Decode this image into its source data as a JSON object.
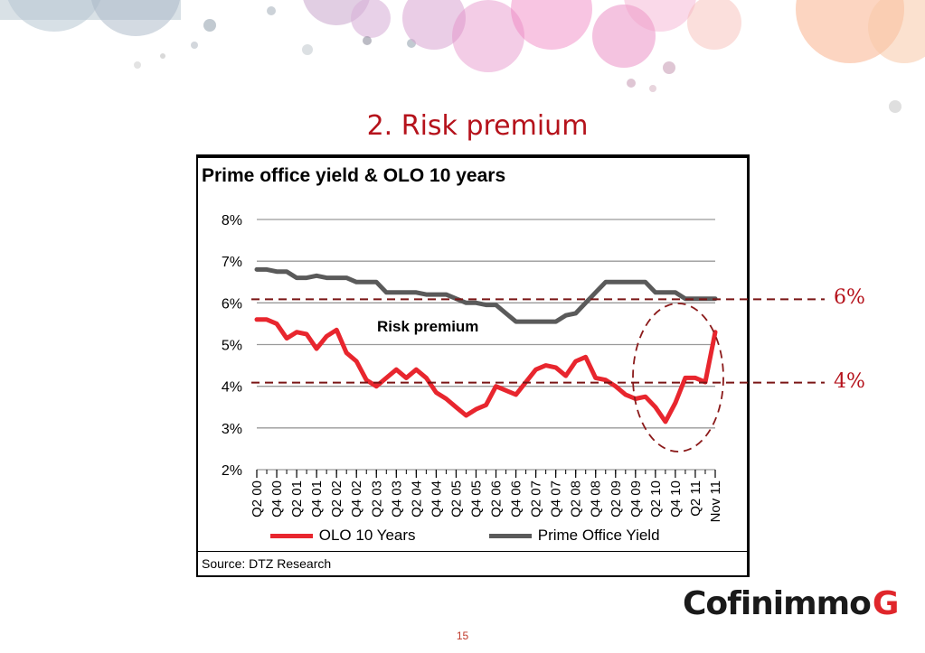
{
  "slide": {
    "title": "2. Risk premium",
    "page_number": "15",
    "logo_text": "Cofinimmo",
    "logo_mark": "G"
  },
  "annotations": {
    "risk_premium_label": "Risk premium",
    "level_high_label": "6%",
    "level_high_value": 6,
    "level_low_label": "4%",
    "level_low_value": 4
  },
  "chart_data": {
    "type": "line",
    "title": "Prime office yield & OLO 10 years",
    "source": "Source: DTZ Research",
    "xlabel": "",
    "ylabel": "",
    "ylim": [
      2,
      8
    ],
    "y_ticks": [
      2,
      3,
      4,
      5,
      6,
      7,
      8
    ],
    "y_tick_labels": [
      "2%",
      "3%",
      "4%",
      "5%",
      "6%",
      "7%",
      "8%"
    ],
    "grid": true,
    "legend_position": "bottom",
    "x_tick_labels": [
      "Q2 00",
      "Q4 00",
      "Q2 01",
      "Q4 01",
      "Q2 02",
      "Q4 02",
      "Q2 03",
      "Q4 03",
      "Q2 04",
      "Q4 04",
      "Q2 05",
      "Q4 05",
      "Q2 06",
      "Q4 06",
      "Q2 07",
      "Q4 07",
      "Q2 08",
      "Q4 08",
      "Q2 09",
      "Q4 09",
      "Q2 10",
      "Q4 10",
      "Q2 11",
      "Nov 11"
    ],
    "series": [
      {
        "name": "OLO 10 Years",
        "color": "#e8262e",
        "values": [
          5.6,
          5.6,
          5.5,
          5.15,
          5.3,
          5.25,
          4.9,
          5.2,
          5.35,
          4.8,
          4.6,
          4.15,
          4.0,
          4.2,
          4.4,
          4.2,
          4.4,
          4.2,
          3.85,
          3.7,
          3.5,
          3.3,
          3.45,
          3.55,
          4.0,
          3.9,
          3.8,
          4.1,
          4.4,
          4.5,
          4.45,
          4.25,
          4.6,
          4.7,
          4.2,
          4.15,
          4.0,
          3.8,
          3.7,
          3.75,
          3.5,
          3.15,
          3.6,
          4.2,
          4.2,
          4.1,
          5.3
        ]
      },
      {
        "name": "Prime Office Yield",
        "color": "#5a5a5a",
        "values": [
          6.8,
          6.8,
          6.75,
          6.75,
          6.6,
          6.6,
          6.65,
          6.6,
          6.6,
          6.6,
          6.5,
          6.5,
          6.5,
          6.25,
          6.25,
          6.25,
          6.25,
          6.2,
          6.2,
          6.2,
          6.1,
          6.0,
          6.0,
          5.95,
          5.95,
          5.75,
          5.55,
          5.55,
          5.55,
          5.55,
          5.55,
          5.7,
          5.75,
          6.0,
          6.25,
          6.5,
          6.5,
          6.5,
          6.5,
          6.5,
          6.25,
          6.25,
          6.25,
          6.1,
          6.1,
          6.1,
          6.1
        ]
      }
    ]
  }
}
